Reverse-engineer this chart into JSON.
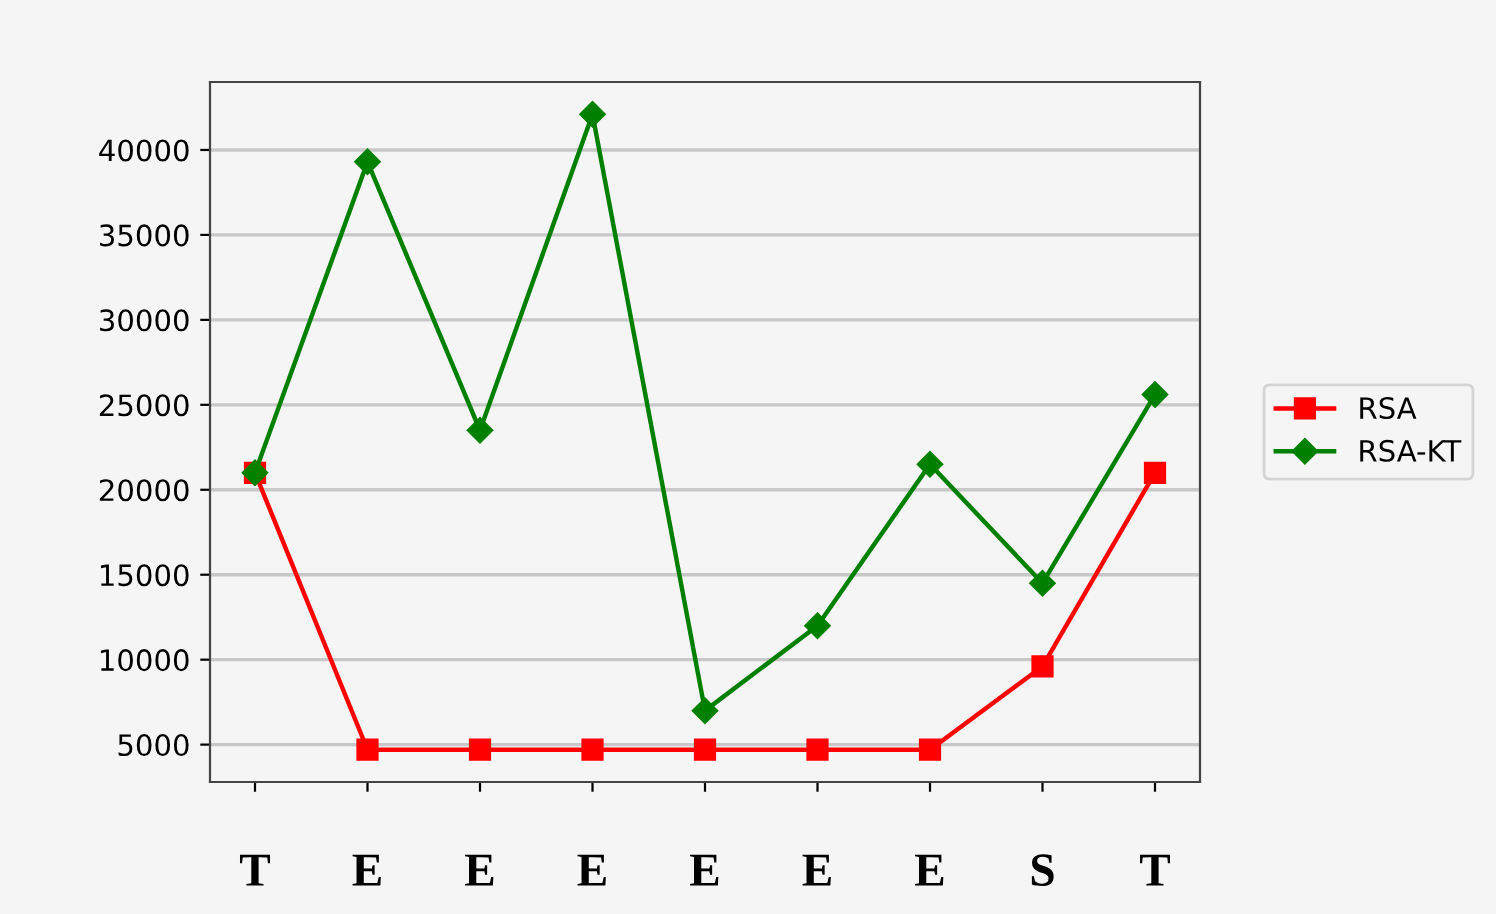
{
  "chart_data": {
    "type": "line",
    "categories": [
      "T",
      "E",
      "E",
      "E",
      "E",
      "E",
      "E",
      "S",
      "T"
    ],
    "series": [
      {
        "name": "RSA",
        "color": "#ff0000",
        "marker": "square",
        "values": [
          21000,
          4700,
          4700,
          4700,
          4700,
          4700,
          4700,
          9600,
          21000
        ]
      },
      {
        "name": "RSA-KT",
        "color": "#008000",
        "marker": "diamond",
        "values": [
          21000,
          39300,
          23500,
          42100,
          7000,
          12000,
          21500,
          14500,
          25600
        ]
      }
    ],
    "ylim": [
      2800,
      44000
    ],
    "yticks": [
      5000,
      10000,
      15000,
      20000,
      25000,
      30000,
      35000,
      40000
    ],
    "grid": "y",
    "legend": "right"
  }
}
